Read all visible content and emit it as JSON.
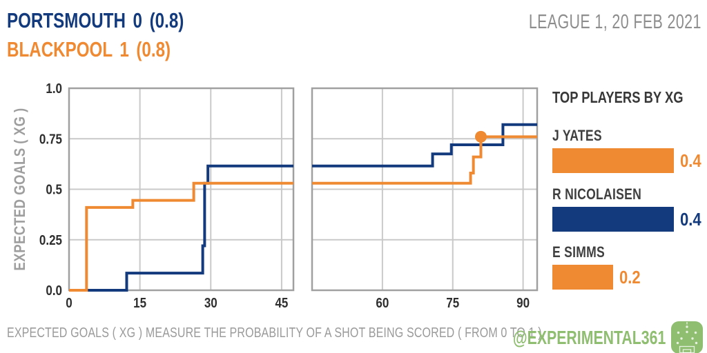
{
  "header": {
    "home_line": "PORTSMOUTH 0 (0.8)",
    "away_line": "BLACKPOOL 1 (0.8)",
    "competition": "LEAGUE 1, 20 FEB 2021"
  },
  "colors": {
    "home": "#123a7c",
    "away": "#ef8a33",
    "grid": "#c9c9c9",
    "panel_border": "#a0a0a0",
    "tick_text": "#2e2e2e",
    "axis_label_text": "#9e9e9e",
    "competition_text": "#8d8d8d",
    "legend_title_text": "#383838",
    "player_name_text": "#3f3f3f",
    "footer_text": "#9a9a9a",
    "brand_green": "#8fbe71"
  },
  "legend": {
    "title": "TOP PLAYERS BY XG",
    "players": [
      {
        "name": "J YATES",
        "value_label": "0.4",
        "xg": 0.4,
        "color": "#ef8a33"
      },
      {
        "name": "R NICOLAISEN",
        "value_label": "0.4",
        "xg": 0.4,
        "color": "#123a7c"
      },
      {
        "name": "E SIMMS",
        "value_label": "0.2",
        "xg": 0.2,
        "color": "#ef8a33"
      }
    ]
  },
  "footer": {
    "note": "EXPECTED GOALS ( XG ) MEASURE THE PROBABILITY OF A SHOT BEING SCORED ( FROM 0 TO 1 ).",
    "watermark": "@EXPERIMENTAL361"
  },
  "chart_data": {
    "type": "line",
    "step": true,
    "ylabel": "EXPECTED GOALS ( XG )",
    "ylim": [
      0,
      1
    ],
    "yticks": [
      {
        "v": 0,
        "label": "0.0"
      },
      {
        "v": 0.25,
        "label": "0.25"
      },
      {
        "v": 0.5,
        "label": "0.5"
      },
      {
        "v": 0.75,
        "label": "0.75"
      },
      {
        "v": 1,
        "label": "1.0"
      }
    ],
    "grid": true,
    "legend_position": "right",
    "panels": [
      {
        "name": "first-half",
        "xlim": [
          0,
          47.5
        ],
        "xticks": [
          {
            "v": 0,
            "label": "0"
          },
          {
            "v": 15,
            "label": "15"
          },
          {
            "v": 30,
            "label": "30"
          },
          {
            "v": 45,
            "label": "45"
          }
        ]
      },
      {
        "name": "second-half",
        "xlim": [
          45,
          93
        ],
        "xticks": [
          {
            "v": 60,
            "label": "60"
          },
          {
            "v": 75,
            "label": "75"
          },
          {
            "v": 90,
            "label": "90"
          }
        ]
      }
    ],
    "series": [
      {
        "name": "PORTSMOUTH",
        "color": "#123a7c",
        "start": 0,
        "final_xg": 0.8,
        "goals": [],
        "steps": [
          [
            12.2,
            0.085
          ],
          [
            28.3,
            0.22
          ],
          [
            28.7,
            0.53
          ],
          [
            29.4,
            0.615
          ],
          [
            70.7,
            0.675
          ],
          [
            74.7,
            0.72
          ],
          [
            85.7,
            0.82
          ]
        ]
      },
      {
        "name": "BLACKPOOL",
        "color": "#ef8a33",
        "start": 0,
        "final_xg": 0.8,
        "goals": [
          [
            81,
            0.76
          ]
        ],
        "steps": [
          [
            3.7,
            0.41
          ],
          [
            13.5,
            0.445
          ],
          [
            26.4,
            0.53
          ],
          [
            78.8,
            0.58
          ],
          [
            79.4,
            0.66
          ],
          [
            81,
            0.76
          ]
        ]
      }
    ]
  }
}
